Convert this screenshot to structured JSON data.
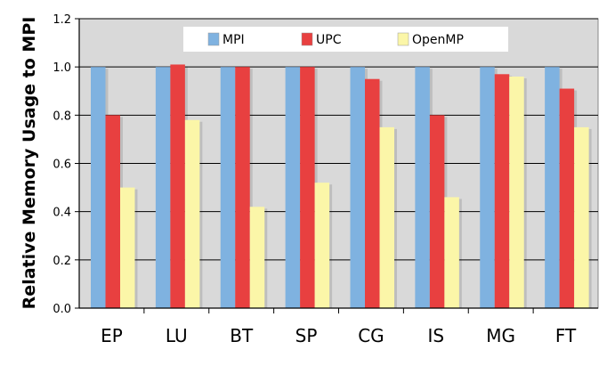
{
  "chart_data": {
    "type": "bar",
    "title": "",
    "xlabel": "",
    "ylabel": "Relative Memory Usage to MPI",
    "ylim": [
      0,
      1.2
    ],
    "yticks": [
      "0.0",
      "0.2",
      "0.4",
      "0.6",
      "0.8",
      "1.0",
      "1.2"
    ],
    "grid": true,
    "legend_position": "top",
    "categories": [
      "EP",
      "LU",
      "BT",
      "SP",
      "CG",
      "IS",
      "MG",
      "FT"
    ],
    "series": [
      {
        "name": "MPI",
        "color": "#7fb2e0",
        "values": [
          1.0,
          1.0,
          1.0,
          1.0,
          1.0,
          1.0,
          1.0,
          1.0
        ]
      },
      {
        "name": "UPC",
        "color": "#e84040",
        "values": [
          0.8,
          1.01,
          1.0,
          1.0,
          0.95,
          0.8,
          0.97,
          0.91
        ]
      },
      {
        "name": "OpenMP",
        "color": "#fbf6a8",
        "values": [
          0.5,
          0.78,
          0.42,
          0.52,
          0.75,
          0.46,
          0.96,
          0.75
        ]
      }
    ],
    "plot_background": "#d9d9d9"
  }
}
